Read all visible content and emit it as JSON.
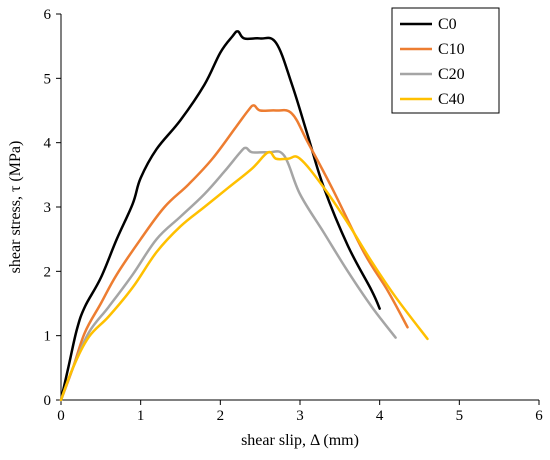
{
  "chart_data": {
    "type": "line",
    "title": "",
    "xlabel": "shear slip, Δ (mm)",
    "ylabel": "shear stress,  τ (MPa)",
    "xlim": [
      0,
      6
    ],
    "ylim": [
      0,
      6
    ],
    "xticks": [
      0,
      1,
      2,
      3,
      4,
      5,
      6
    ],
    "yticks": [
      0,
      1,
      2,
      3,
      4,
      5,
      6
    ],
    "grid": false,
    "legend_position": "top-right",
    "series": [
      {
        "name": "C0",
        "color": "#000000",
        "x": [
          0,
          0.1,
          0.2,
          0.3,
          0.5,
          0.7,
          0.9,
          1.0,
          1.2,
          1.5,
          1.8,
          2.0,
          2.15,
          2.22,
          2.3,
          2.5,
          2.7,
          2.9,
          3.1,
          3.3,
          3.6,
          3.9,
          4.0
        ],
        "y": [
          0,
          0.55,
          1.1,
          1.45,
          1.9,
          2.5,
          3.05,
          3.45,
          3.9,
          4.35,
          4.9,
          5.4,
          5.65,
          5.73,
          5.62,
          5.62,
          5.55,
          4.9,
          4.1,
          3.3,
          2.4,
          1.7,
          1.42
        ]
      },
      {
        "name": "C10",
        "color": "#ED7D31",
        "x": [
          0,
          0.15,
          0.3,
          0.5,
          0.7,
          1.0,
          1.3,
          1.6,
          1.9,
          2.2,
          2.35,
          2.42,
          2.5,
          2.7,
          2.9,
          3.1,
          3.4,
          3.8,
          4.1,
          4.35
        ],
        "y": [
          0,
          0.5,
          1.05,
          1.5,
          1.95,
          2.5,
          3.0,
          3.35,
          3.75,
          4.25,
          4.5,
          4.58,
          4.5,
          4.5,
          4.45,
          4.0,
          3.3,
          2.3,
          1.7,
          1.13
        ]
      },
      {
        "name": "C20",
        "color": "#A5A5A5",
        "x": [
          0,
          0.15,
          0.35,
          0.6,
          0.9,
          1.2,
          1.5,
          1.8,
          2.05,
          2.25,
          2.32,
          2.4,
          2.6,
          2.8,
          3.0,
          3.3,
          3.6,
          3.9,
          4.2
        ],
        "y": [
          0,
          0.5,
          1.05,
          1.45,
          1.95,
          2.5,
          2.85,
          3.2,
          3.55,
          3.85,
          3.92,
          3.85,
          3.85,
          3.8,
          3.2,
          2.6,
          2.0,
          1.45,
          0.97
        ]
      },
      {
        "name": "C40",
        "color": "#FFC000",
        "x": [
          0,
          0.15,
          0.35,
          0.6,
          0.9,
          1.2,
          1.5,
          1.8,
          2.1,
          2.4,
          2.6,
          2.7,
          2.85,
          3.0,
          3.3,
          3.6,
          3.9,
          4.2,
          4.6
        ],
        "y": [
          0,
          0.5,
          0.98,
          1.3,
          1.75,
          2.3,
          2.7,
          3.0,
          3.3,
          3.6,
          3.85,
          3.75,
          3.75,
          3.75,
          3.3,
          2.75,
          2.15,
          1.6,
          0.95
        ]
      }
    ]
  }
}
